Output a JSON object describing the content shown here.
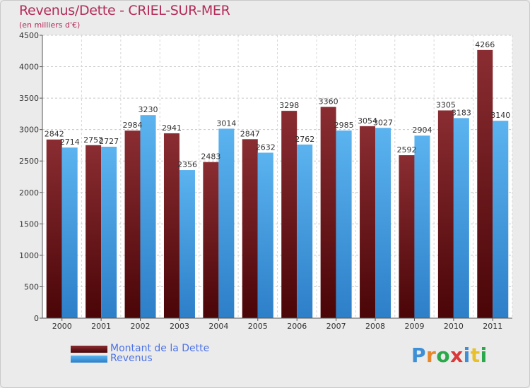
{
  "chart_data": {
    "type": "bar",
    "title": "Revenus/Dette - CRIEL-SUR-MER",
    "subtitle": "(en milliers d'€)",
    "categories": [
      "2000",
      "2001",
      "2002",
      "2003",
      "2004",
      "2005",
      "2006",
      "2007",
      "2008",
      "2009",
      "2010",
      "2011"
    ],
    "series": [
      {
        "name": "Montant de la Dette",
        "color": "#7a1f24",
        "values": [
          2842,
          2752,
          2984,
          2941,
          2483,
          2847,
          3298,
          3360,
          3054,
          2592,
          3305,
          4266
        ]
      },
      {
        "name": "Revenus",
        "color": "#3d98e0",
        "values": [
          2714,
          2727,
          3230,
          2356,
          3014,
          2632,
          2762,
          2985,
          3027,
          2904,
          3183,
          3140
        ]
      }
    ],
    "ylim": [
      0,
      4500
    ],
    "yticks": [
      0,
      500,
      1000,
      1500,
      2000,
      2500,
      3000,
      3500,
      4000,
      4500
    ],
    "grid": true,
    "legend": "bottom-left"
  },
  "logo_text": "Proxiti",
  "colors": {
    "title": "#b32b5a",
    "legend_text": "#4d73e6",
    "debt_dark": "#4a0507",
    "debt_light": "#8a2d32",
    "rev_dark": "#2d7fc8",
    "rev_light": "#5bb3ef"
  }
}
